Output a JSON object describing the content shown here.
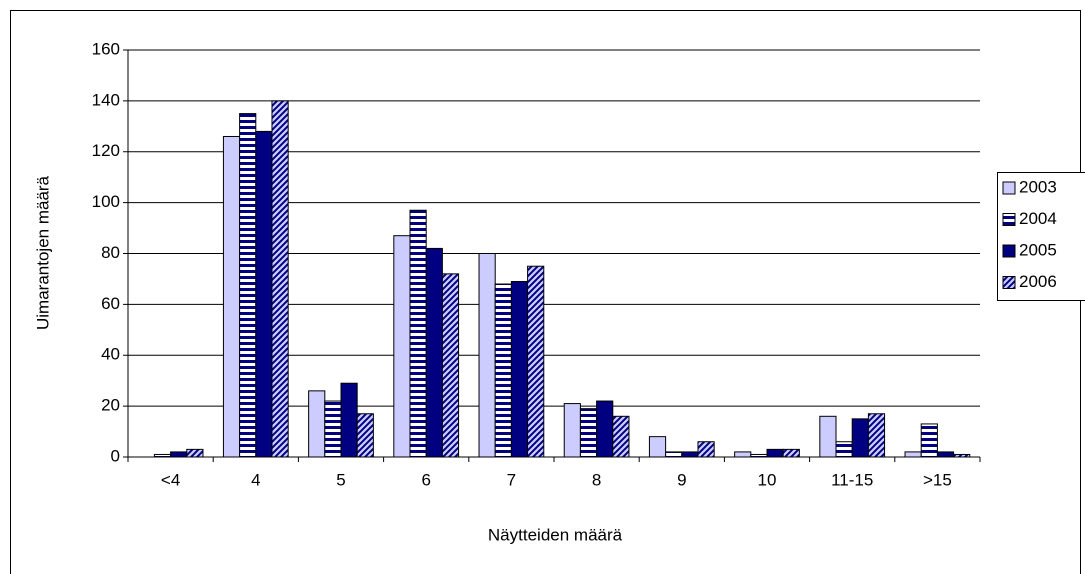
{
  "chart_data": {
    "type": "bar",
    "xlabel": "Näytteiden määrä",
    "ylabel": "Uimarantojen määrä",
    "categories": [
      "<4",
      "4",
      "5",
      "6",
      "7",
      "8",
      "9",
      "10",
      "11-15",
      ">15"
    ],
    "series": [
      {
        "name": "2003",
        "color": "#ccccff",
        "pattern": "solid",
        "values": [
          0,
          126,
          26,
          87,
          80,
          21,
          8,
          2,
          16,
          2
        ]
      },
      {
        "name": "2004",
        "color": "#000080",
        "pattern": "horizontal",
        "values": [
          1,
          135,
          22,
          97,
          68,
          19,
          2,
          1,
          6,
          13
        ]
      },
      {
        "name": "2005",
        "color": "#000080",
        "pattern": "solid",
        "values": [
          2,
          128,
          29,
          82,
          69,
          22,
          2,
          3,
          15,
          2
        ]
      },
      {
        "name": "2006",
        "color": "#000080",
        "pattern": "diagonal",
        "values": [
          3,
          140,
          17,
          72,
          75,
          16,
          6,
          3,
          17,
          1
        ]
      }
    ],
    "ylim": [
      0,
      160
    ],
    "yticks": [
      0,
      20,
      40,
      60,
      80,
      100,
      120,
      140,
      160
    ],
    "grid": true,
    "legend": "right"
  }
}
